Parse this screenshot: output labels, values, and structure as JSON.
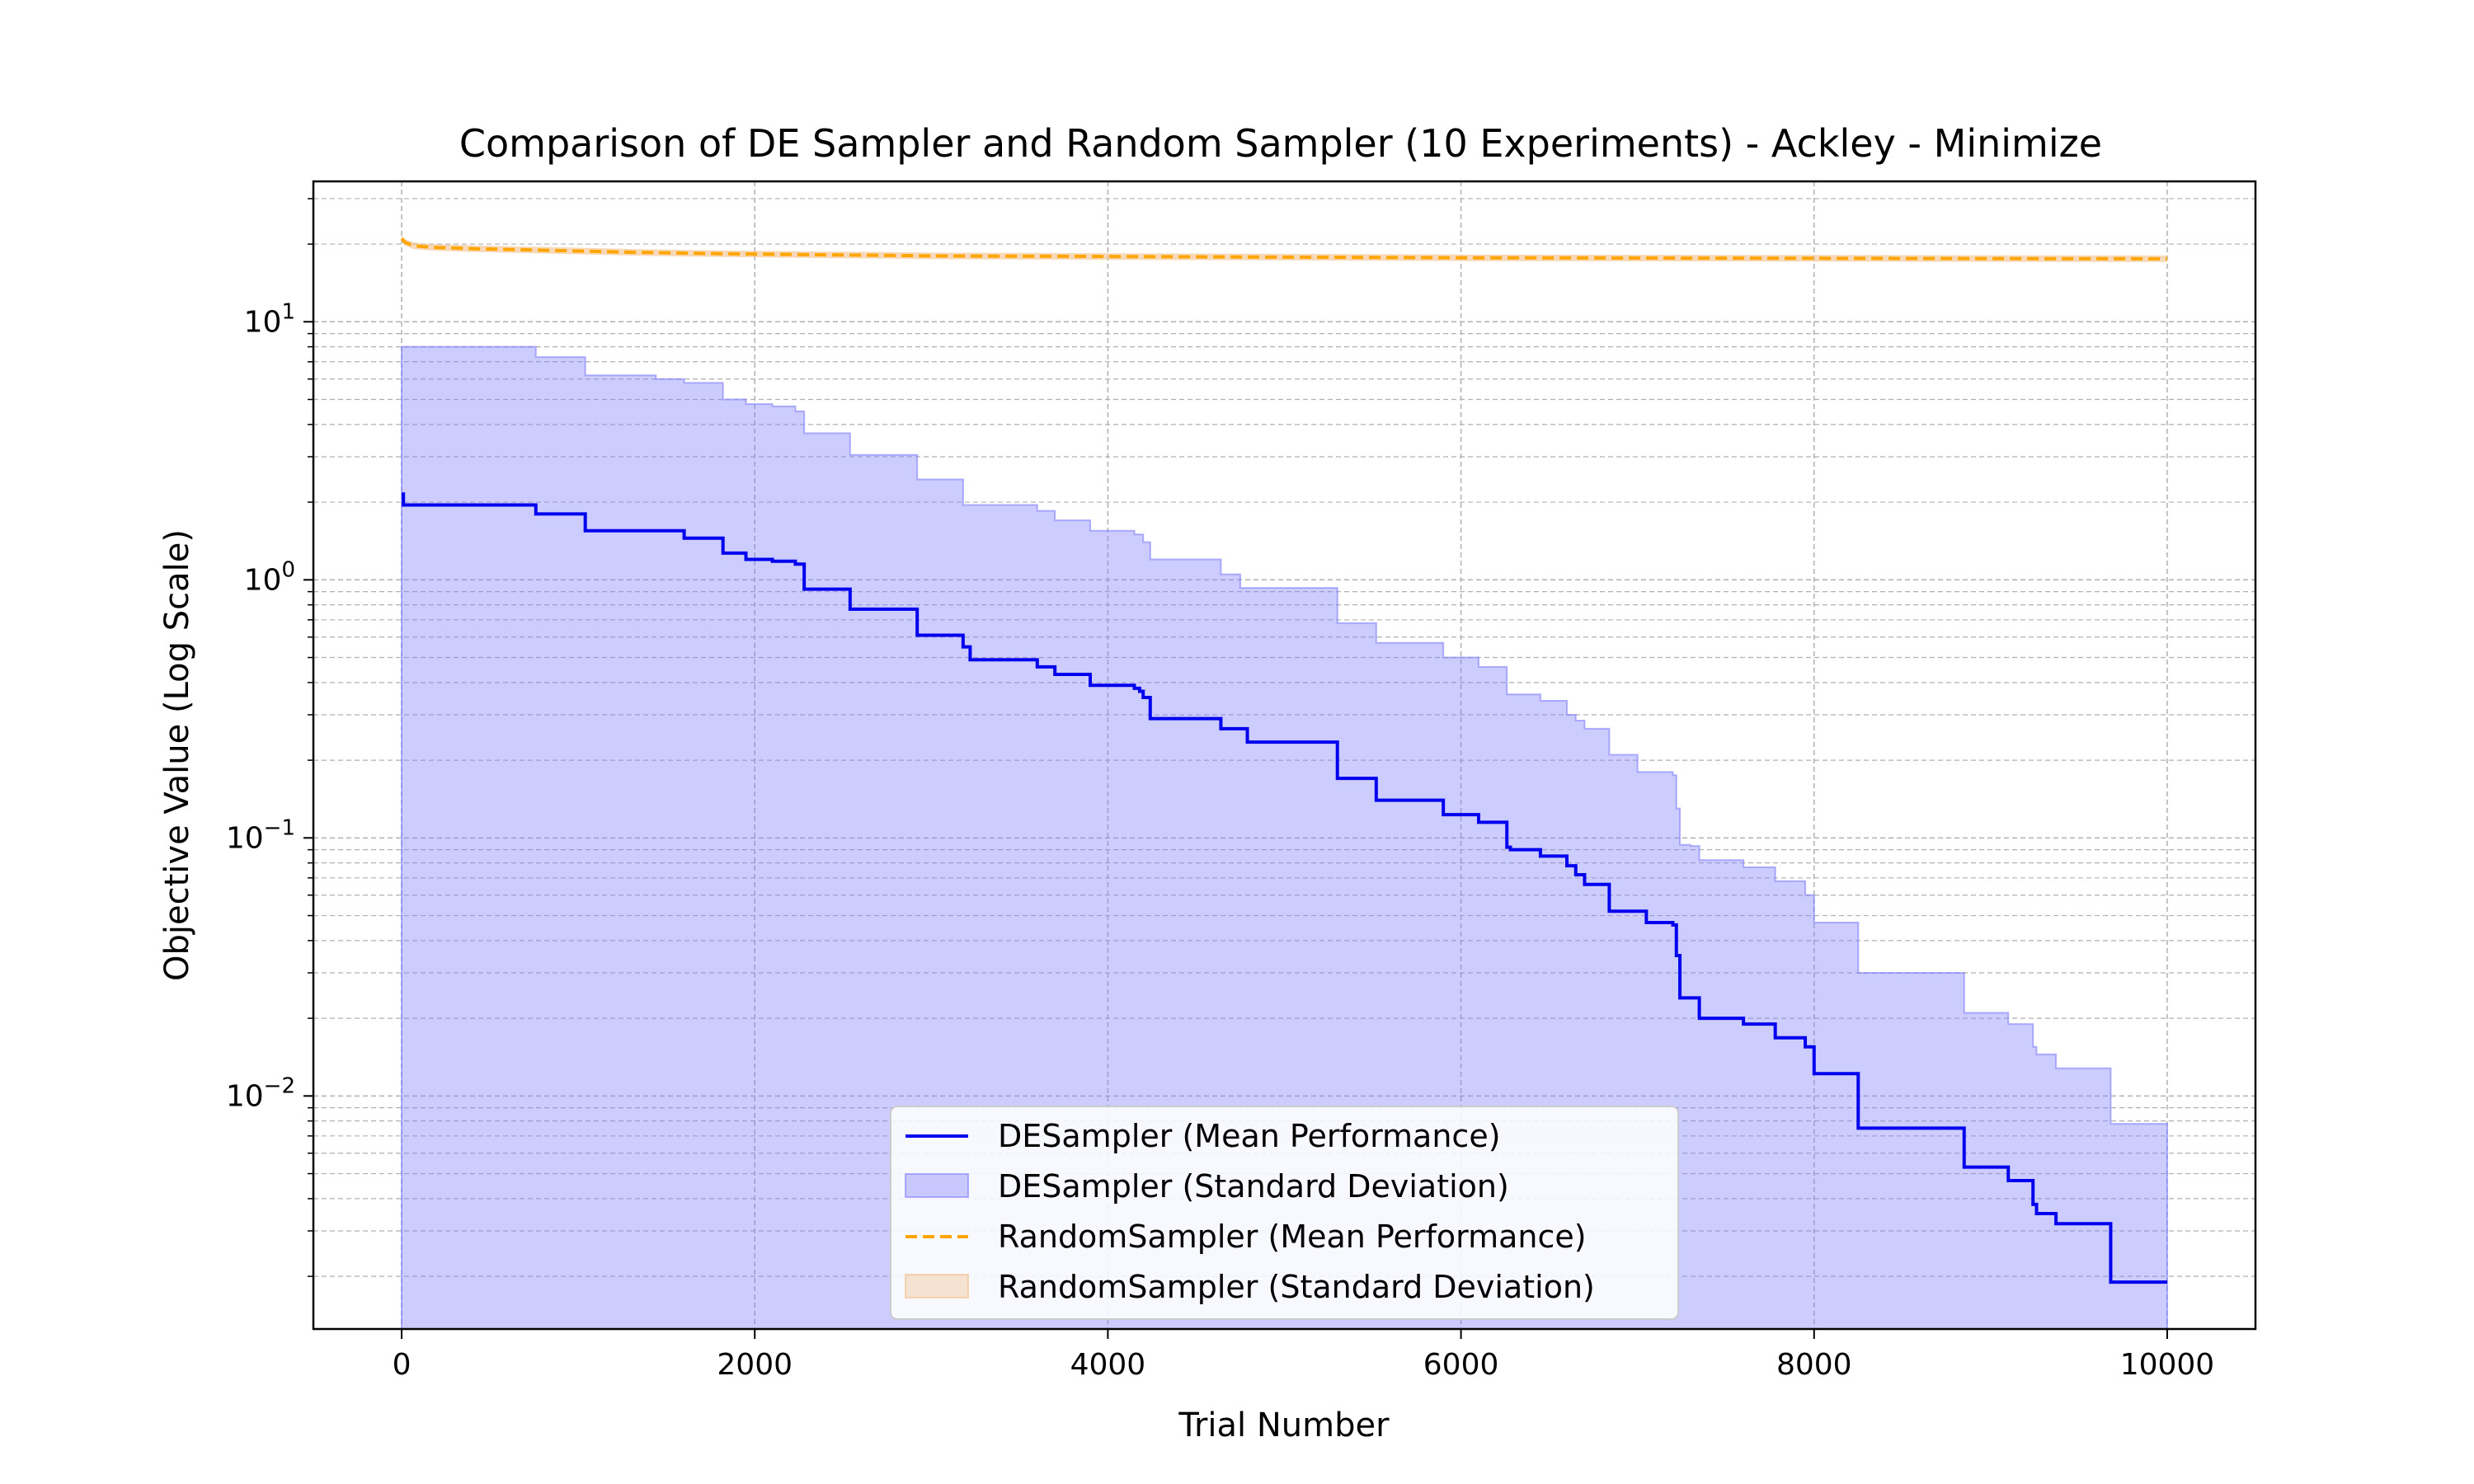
{
  "chart_data": {
    "type": "line",
    "title": "Comparison of DE Sampler and Random Sampler (10 Experiments) - Ackley - Minimize",
    "xlabel": "Trial Number",
    "ylabel": "Objective Value (Log Scale)",
    "xlim": [
      -500,
      10500
    ],
    "ylim": [
      0.00125,
      35
    ],
    "yscale": "log",
    "grid": true,
    "legend_position": "lower-center",
    "x_ticks": [
      {
        "value": 0,
        "label": "0"
      },
      {
        "value": 2000,
        "label": "2000"
      },
      {
        "value": 4000,
        "label": "4000"
      },
      {
        "value": 6000,
        "label": "6000"
      },
      {
        "value": 8000,
        "label": "8000"
      },
      {
        "value": 10000,
        "label": "10000"
      }
    ],
    "y_ticks": [
      {
        "value": 10,
        "base": "10",
        "exp": "1"
      },
      {
        "value": 1,
        "base": "10",
        "exp": "0"
      },
      {
        "value": 0.1,
        "base": "10",
        "exp": "−1"
      },
      {
        "value": 0.01,
        "base": "10",
        "exp": "−2"
      }
    ],
    "series": [
      {
        "name": "DESampler (Mean Performance)",
        "kind": "line",
        "color": "#0000ee",
        "x": [
          0,
          10,
          760,
          1040,
          1600,
          1820,
          1950,
          2100,
          2230,
          2280,
          2540,
          2920,
          3180,
          3220,
          3600,
          3700,
          3900,
          4150,
          4180,
          4200,
          4240,
          4640,
          4790,
          5300,
          5520,
          5900,
          6100,
          6260,
          6280,
          6450,
          6600,
          6650,
          6700,
          6840,
          7050,
          7200,
          7220,
          7240,
          7350,
          7600,
          7780,
          7950,
          8000,
          8250,
          8850,
          9100,
          9240,
          9260,
          9370,
          9680,
          10000
        ],
        "y": [
          2.15,
          1.95,
          1.8,
          1.55,
          1.45,
          1.27,
          1.2,
          1.18,
          1.15,
          0.92,
          0.77,
          0.61,
          0.55,
          0.49,
          0.46,
          0.43,
          0.39,
          0.38,
          0.37,
          0.35,
          0.29,
          0.265,
          0.235,
          0.17,
          0.14,
          0.123,
          0.115,
          0.092,
          0.09,
          0.085,
          0.078,
          0.072,
          0.066,
          0.052,
          0.047,
          0.046,
          0.035,
          0.024,
          0.02,
          0.019,
          0.0168,
          0.0155,
          0.0122,
          0.0075,
          0.0053,
          0.0047,
          0.0038,
          0.0035,
          0.0032,
          0.0019,
          0.0019
        ]
      },
      {
        "name": "DESampler (Standard Deviation)",
        "kind": "band",
        "color": "#8080ff",
        "x": [
          0,
          760,
          1040,
          1440,
          1600,
          1820,
          1950,
          2100,
          2230,
          2280,
          2540,
          2920,
          3180,
          3600,
          3700,
          3900,
          4150,
          4200,
          4240,
          4640,
          4750,
          5300,
          5520,
          5900,
          6100,
          6260,
          6450,
          6600,
          6650,
          6700,
          6840,
          7000,
          7200,
          7220,
          7240,
          7300,
          7350,
          7600,
          7780,
          7950,
          8000,
          8250,
          8850,
          9100,
          9240,
          9260,
          9370,
          9680,
          10000
        ],
        "upper": [
          8.0,
          7.3,
          6.2,
          6.0,
          5.8,
          5.0,
          4.8,
          4.7,
          4.5,
          3.7,
          3.05,
          2.45,
          1.95,
          1.85,
          1.7,
          1.55,
          1.5,
          1.4,
          1.2,
          1.05,
          0.93,
          0.68,
          0.57,
          0.5,
          0.46,
          0.36,
          0.34,
          0.3,
          0.285,
          0.265,
          0.21,
          0.18,
          0.175,
          0.13,
          0.094,
          0.093,
          0.082,
          0.077,
          0.068,
          0.06,
          0.047,
          0.03,
          0.021,
          0.019,
          0.0155,
          0.0145,
          0.0128,
          0.0078,
          0.0078
        ],
        "lower": 0.00125
      },
      {
        "name": "RandomSampler (Mean Performance)",
        "kind": "line",
        "dashed": true,
        "color": "#ffa500",
        "x": [
          0,
          20,
          60,
          100,
          200,
          400,
          700,
          1000,
          1300,
          1700,
          2000,
          2300,
          2700,
          3000,
          3500,
          4000,
          4500,
          5000,
          5500,
          6000,
          6500,
          7000,
          7500,
          8000,
          8500,
          9000,
          9500,
          10000
        ],
        "y": [
          21.0,
          20.3,
          19.8,
          19.6,
          19.4,
          19.2,
          19.0,
          18.8,
          18.6,
          18.4,
          18.3,
          18.2,
          18.1,
          18.0,
          17.95,
          17.9,
          17.85,
          17.8,
          17.75,
          17.7,
          17.68,
          17.66,
          17.64,
          17.62,
          17.6,
          17.58,
          17.56,
          17.55
        ]
      },
      {
        "name": "RandomSampler (Standard Deviation)",
        "kind": "band",
        "color": "#f2c08a"
      }
    ]
  }
}
